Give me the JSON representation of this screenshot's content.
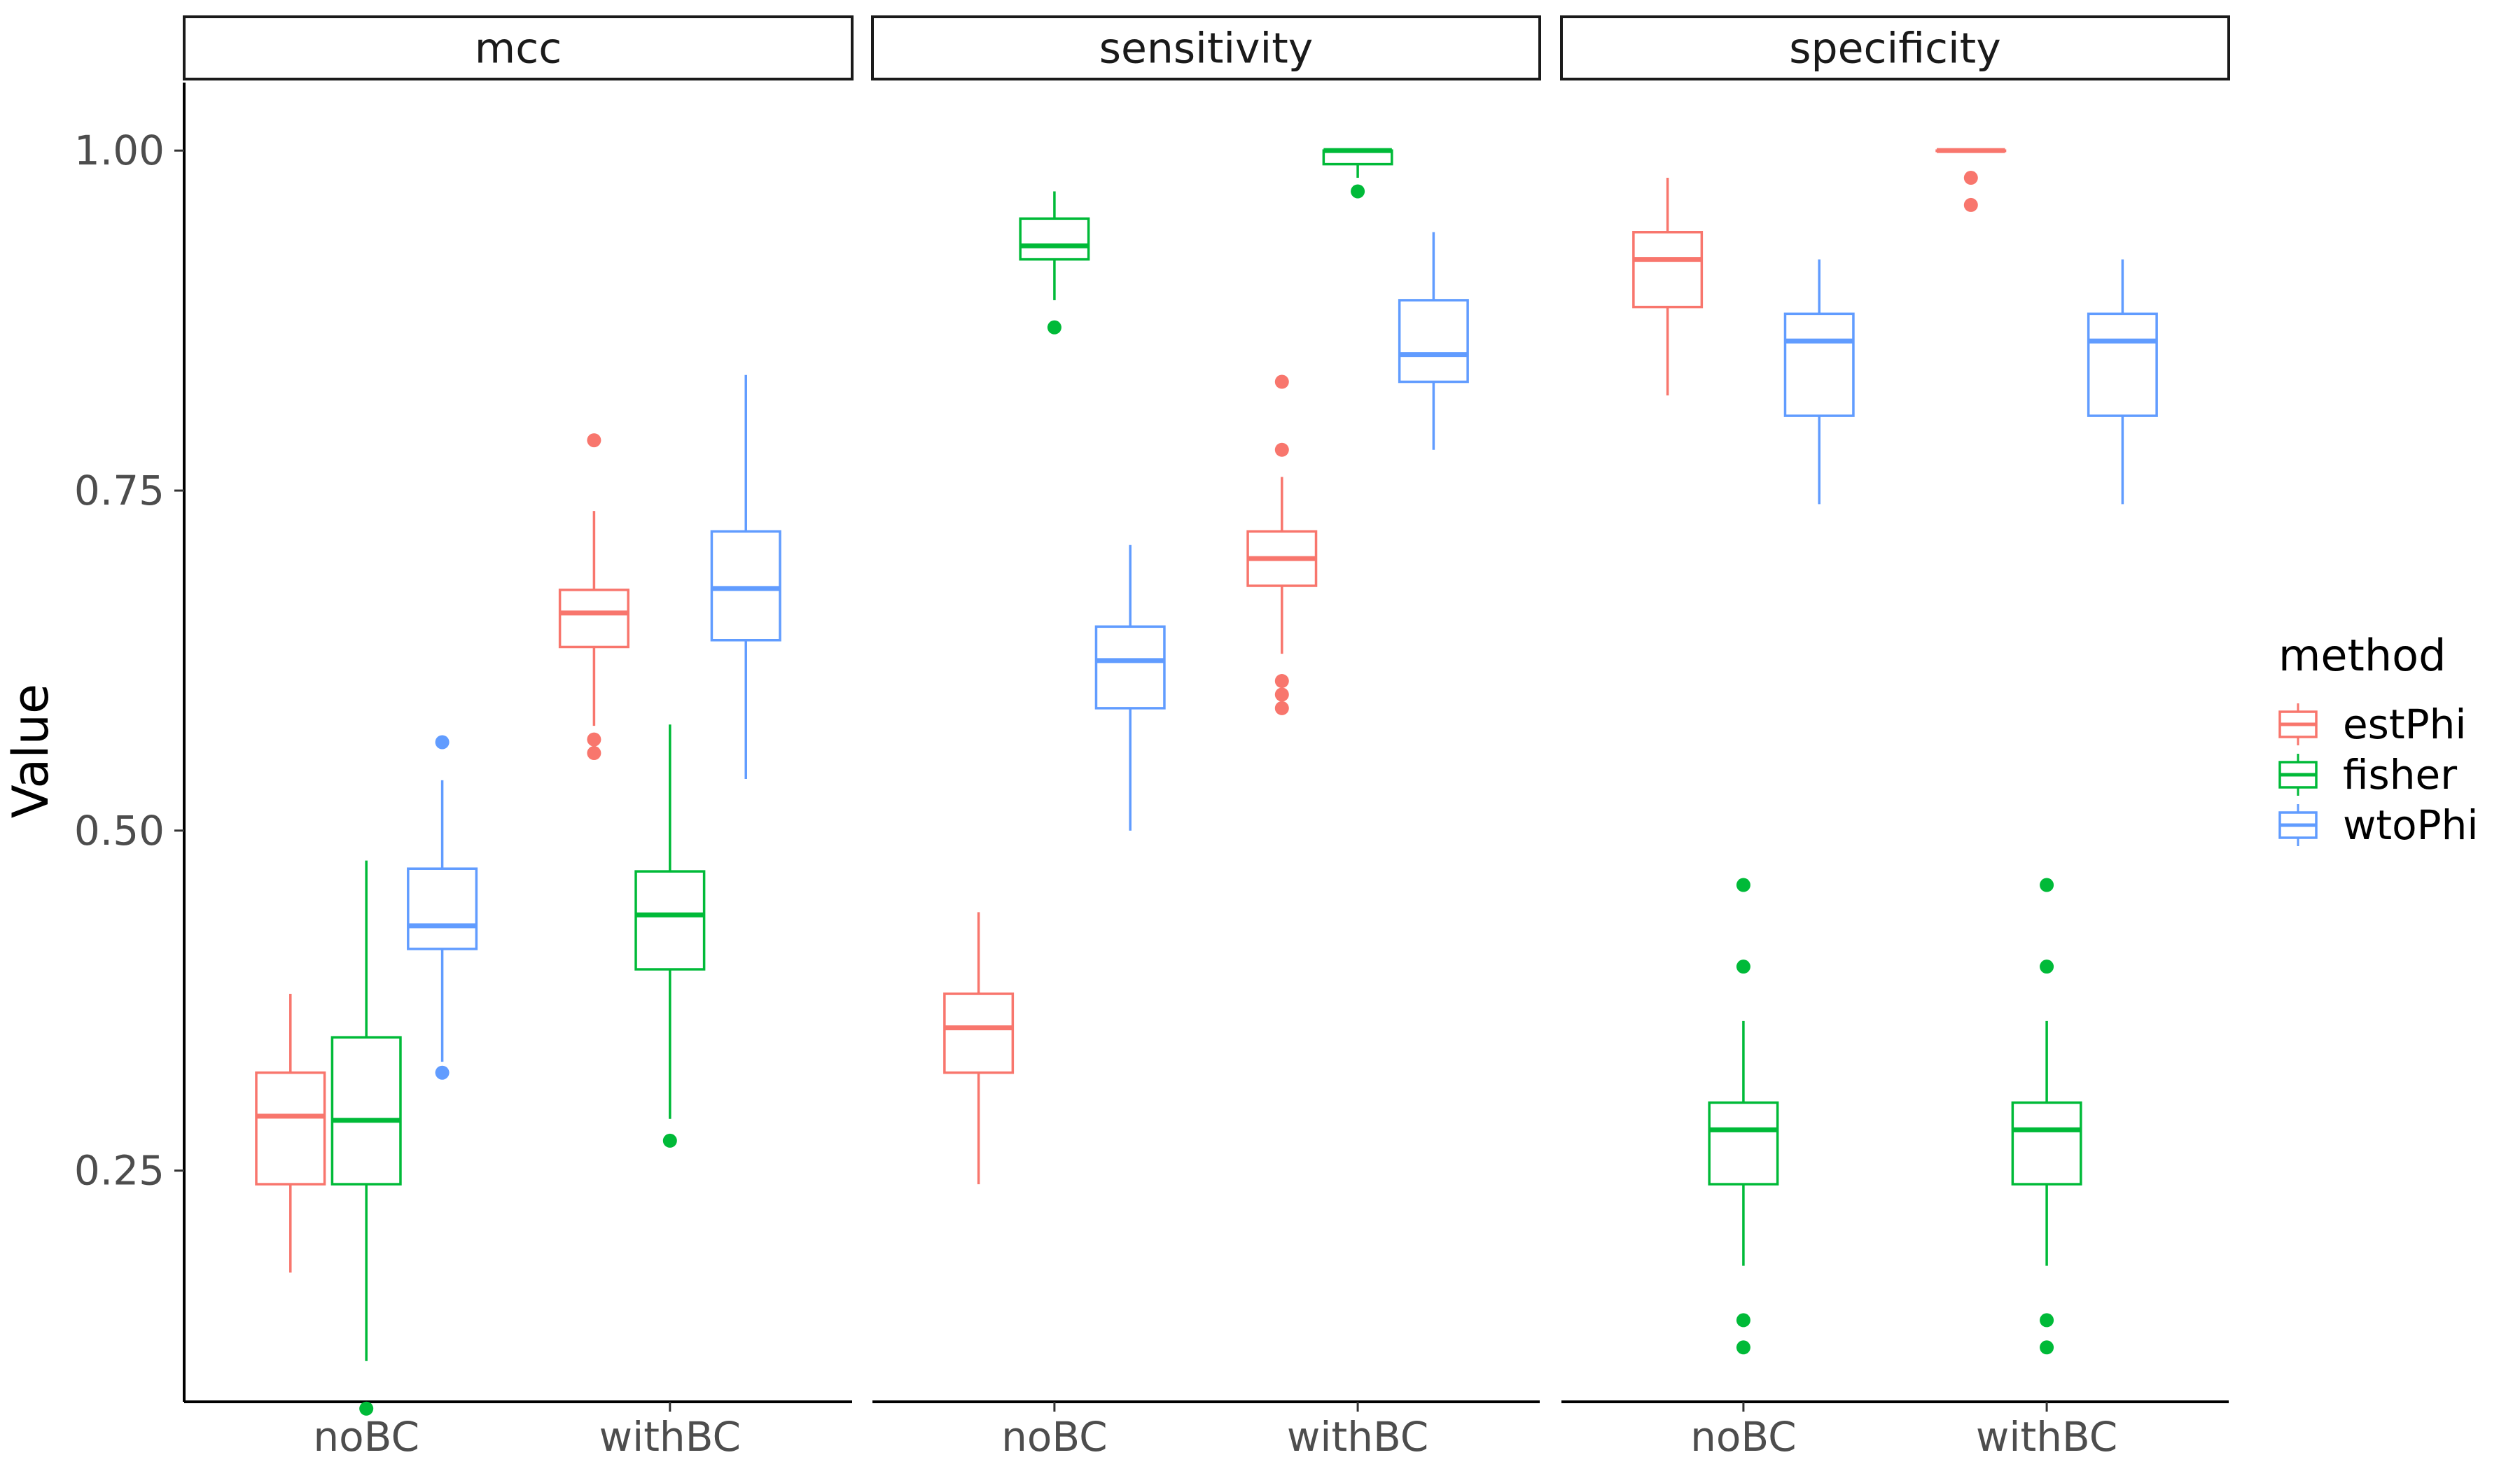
{
  "chart_data": {
    "type": "boxplot",
    "ylabel": "Value",
    "xlabel": "",
    "ylim": [
      0.08,
      1.05
    ],
    "y_ticks": [
      0.25,
      0.5,
      0.75,
      1.0
    ],
    "y_tick_labels": [
      "0.25",
      "0.50",
      "0.75",
      "1.00"
    ],
    "grid": false,
    "legend_position": "right",
    "legend_title": "method",
    "colors": {
      "estPhi": "#F8766D",
      "fisher": "#00BA38",
      "wtoPhi": "#619CFF"
    },
    "methods": [
      "estPhi",
      "fisher",
      "wtoPhi"
    ],
    "categories": [
      "noBC",
      "withBC"
    ],
    "panels": [
      {
        "name": "mcc",
        "groups": [
          {
            "category": "noBC",
            "method": "estPhi",
            "min": 0.175,
            "q1": 0.24,
            "median": 0.29,
            "q3": 0.322,
            "max": 0.38,
            "outliers": []
          },
          {
            "category": "noBC",
            "method": "fisher",
            "min": 0.11,
            "q1": 0.24,
            "median": 0.287,
            "q3": 0.348,
            "max": 0.478,
            "outliers": [
              0.075
            ]
          },
          {
            "category": "noBC",
            "method": "wtoPhi",
            "min": 0.33,
            "q1": 0.413,
            "median": 0.43,
            "q3": 0.472,
            "max": 0.537,
            "outliers": [
              0.565,
              0.322
            ]
          },
          {
            "category": "withBC",
            "method": "estPhi",
            "min": 0.577,
            "q1": 0.635,
            "median": 0.66,
            "q3": 0.677,
            "max": 0.735,
            "outliers": [
              0.787,
              0.567,
              0.557
            ]
          },
          {
            "category": "withBC",
            "method": "fisher",
            "min": 0.288,
            "q1": 0.398,
            "median": 0.438,
            "q3": 0.47,
            "max": 0.578,
            "outliers": [
              0.272
            ]
          },
          {
            "category": "withBC",
            "method": "wtoPhi",
            "min": 0.538,
            "q1": 0.64,
            "median": 0.678,
            "q3": 0.72,
            "max": 0.835,
            "outliers": []
          }
        ]
      },
      {
        "name": "sensitivity",
        "groups": [
          {
            "category": "noBC",
            "method": "estPhi",
            "min": 0.24,
            "q1": 0.322,
            "median": 0.355,
            "q3": 0.38,
            "max": 0.44,
            "outliers": []
          },
          {
            "category": "noBC",
            "method": "fisher",
            "min": 0.89,
            "q1": 0.92,
            "median": 0.93,
            "q3": 0.95,
            "max": 0.97,
            "outliers": [
              0.87
            ]
          },
          {
            "category": "noBC",
            "method": "wtoPhi",
            "min": 0.5,
            "q1": 0.59,
            "median": 0.625,
            "q3": 0.65,
            "max": 0.71,
            "outliers": []
          },
          {
            "category": "withBC",
            "method": "estPhi",
            "min": 0.63,
            "q1": 0.68,
            "median": 0.7,
            "q3": 0.72,
            "max": 0.76,
            "outliers": [
              0.83,
              0.78,
              0.61,
              0.6,
              0.59
            ]
          },
          {
            "category": "withBC",
            "method": "fisher",
            "min": 0.98,
            "q1": 0.99,
            "median": 1.0,
            "q3": 1.0,
            "max": 1.0,
            "outliers": [
              0.97
            ]
          },
          {
            "category": "withBC",
            "method": "wtoPhi",
            "min": 0.78,
            "q1": 0.83,
            "median": 0.85,
            "q3": 0.89,
            "max": 0.94,
            "outliers": []
          }
        ]
      },
      {
        "name": "specificity",
        "groups": [
          {
            "category": "noBC",
            "method": "estPhi",
            "min": 0.82,
            "q1": 0.885,
            "median": 0.92,
            "q3": 0.94,
            "max": 0.98,
            "outliers": []
          },
          {
            "category": "noBC",
            "method": "fisher",
            "min": 0.18,
            "q1": 0.24,
            "median": 0.28,
            "q3": 0.3,
            "max": 0.36,
            "outliers": [
              0.46,
              0.4,
              0.14,
              0.12
            ]
          },
          {
            "category": "noBC",
            "method": "wtoPhi",
            "min": 0.74,
            "q1": 0.805,
            "median": 0.86,
            "q3": 0.88,
            "max": 0.92,
            "outliers": []
          },
          {
            "category": "withBC",
            "method": "estPhi",
            "min": 1.0,
            "q1": 1.0,
            "median": 1.0,
            "q3": 1.0,
            "max": 1.0,
            "outliers": [
              0.98,
              0.96
            ]
          },
          {
            "category": "withBC",
            "method": "fisher",
            "min": 0.18,
            "q1": 0.24,
            "median": 0.28,
            "q3": 0.3,
            "max": 0.36,
            "outliers": [
              0.46,
              0.4,
              0.14,
              0.12
            ]
          },
          {
            "category": "withBC",
            "method": "wtoPhi",
            "min": 0.74,
            "q1": 0.805,
            "median": 0.86,
            "q3": 0.88,
            "max": 0.92,
            "outliers": []
          }
        ]
      }
    ]
  }
}
